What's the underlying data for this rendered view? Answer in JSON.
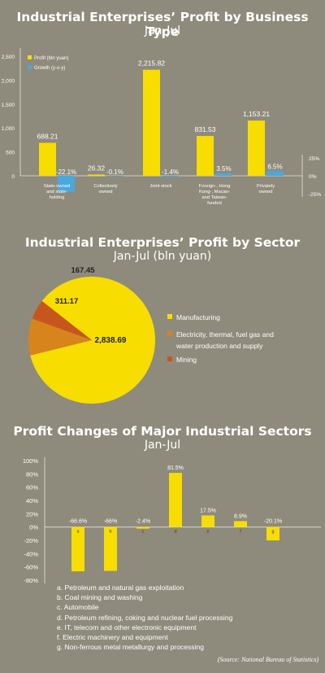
{
  "colors": {
    "background": "#8e8b7c",
    "yellow": "#f7dd00",
    "blue": "#4aa8df",
    "orange": "#d7841d",
    "red": "#c7561e",
    "axis": "#e6e3d7"
  },
  "section1": {
    "title": "Industrial Enterprises’ Profit by Business Type",
    "subtitle": "Jan-Jul"
  },
  "section2": {
    "title": "Industrial Enterprises’ Profit by Sector",
    "subtitle": "Jan-Jul (bln yuan)"
  },
  "section3": {
    "title": "Profit Changes of Major Industrial Sectors",
    "subtitle": "Jan-Jul"
  },
  "source": "(Source: National Bureau of Statistics)",
  "chart_data": [
    {
      "type": "bar",
      "categories": [
        [
          "State-owned",
          "and state-",
          "holding"
        ],
        [
          "Collectively",
          "owned"
        ],
        [
          "Joint stock"
        ],
        [
          "Foreign-, Hong",
          "Kong-, Macao-",
          "and Taiwan-",
          "funded"
        ],
        [
          "Privately",
          "owned"
        ]
      ],
      "series": [
        {
          "name": "Profit (bln yuan)",
          "values": [
            688.21,
            26.32,
            2215.82,
            831.53,
            1153.21
          ],
          "labels": [
            "688.21",
            "26.32",
            "2,215.82",
            "831.53",
            "1,153.21"
          ]
        },
        {
          "name": "Growth (y-o-y)",
          "values": [
            -22.1,
            -0.1,
            -1.4,
            3.5,
            6.5
          ],
          "labels": [
            "-22.1%",
            "-0.1%",
            "-1.4%",
            "3.5%",
            "6.5%"
          ]
        }
      ],
      "ylim": [
        0,
        2500
      ],
      "yticks": [
        "2,500",
        "2,000",
        "1,500",
        "1,000",
        "500",
        "0"
      ],
      "y2lim": [
        -25,
        25
      ],
      "y2ticks": [
        "25%",
        "0%",
        "-25%"
      ],
      "legend": "top-left"
    },
    {
      "type": "pie",
      "slices": [
        {
          "name": "Manufacturing",
          "value": 2838.69,
          "label": "2,838.69",
          "color": "#f7dd00"
        },
        {
          "name": "Electricity, thermal, fuel gas and water production and supply",
          "name_lines": [
            "Electricity, thermal, fuel gas and",
            "water production and supply"
          ],
          "value": 311.17,
          "label": "311.17",
          "color": "#d7841d"
        },
        {
          "name": "Mining",
          "value": 167.45,
          "label": "167.45",
          "color": "#c7561e"
        }
      ],
      "legend": "right"
    },
    {
      "type": "bar",
      "categories": [
        "a",
        "b",
        "c",
        "d",
        "e",
        "f",
        "g"
      ],
      "values": [
        -66.6,
        -66,
        -2.4,
        81.5,
        17.5,
        8.9,
        -20.1
      ],
      "labels": [
        "-66.6%",
        "-66%",
        "-2.4%",
        "81.5%",
        "17.5%",
        "8.9%",
        "-20.1%"
      ],
      "ylim": [
        -80,
        100
      ],
      "yticks": [
        "100%",
        "80%",
        "60%",
        "40%",
        "20%",
        "0%",
        "-20%",
        "-40%",
        "-60%",
        "-80%"
      ],
      "key": [
        "a. Petroleum and natural gas exploitation",
        "b. Coal mining and washing",
        "c. Automobile",
        "d. Petroleum refining, coking and nuclear fuel processing",
        "e. IT, telecom and other electronic equipment",
        "f. Electric machinery and equipment",
        "g. Non-ferrous metal metallurgy and processing"
      ]
    }
  ]
}
